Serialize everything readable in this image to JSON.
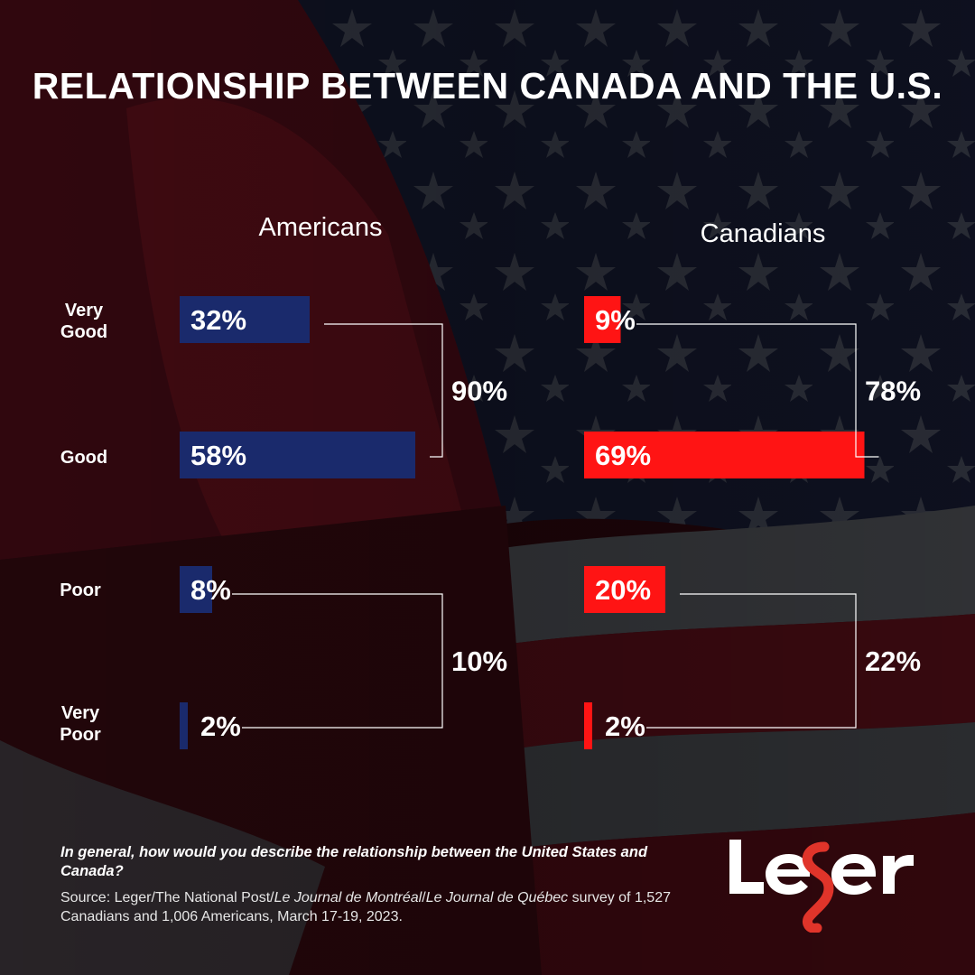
{
  "title": "RELATIONSHIP BETWEEN CANADA AND THE U.S.",
  "colors": {
    "americans": "#1a2a6c",
    "canadians": "#ff1414",
    "bracket": "#ffffff",
    "logo_accent": "#e0342a"
  },
  "chart_data": {
    "type": "bar",
    "orientation": "horizontal",
    "categories": [
      "Very Good",
      "Good",
      "Poor",
      "Very Poor"
    ],
    "series": [
      {
        "name": "Americans",
        "values": [
          32,
          58,
          8,
          2
        ],
        "labels": [
          "32%",
          "58%",
          "8%",
          "2%"
        ]
      },
      {
        "name": "Canadians",
        "values": [
          9,
          69,
          20,
          2
        ],
        "labels": [
          "9%",
          "69%",
          "20%",
          "2%"
        ]
      }
    ],
    "groups": [
      {
        "series": "Americans",
        "positive_total": "90%",
        "negative_total": "10%"
      },
      {
        "series": "Canadians",
        "positive_total": "78%",
        "negative_total": "22%"
      }
    ],
    "row_labels": [
      [
        "Very",
        "Good"
      ],
      [
        "Good"
      ],
      [
        "Poor"
      ],
      [
        "Very",
        "Poor"
      ]
    ]
  },
  "footer": {
    "question": "In general, how would you describe the relationship between the United States and Canada?",
    "source_prefix": "Source: Leger/The National Post/",
    "source_italic_1": "Le Journal de Montréal",
    "source_sep": "/",
    "source_italic_2": "Le Journal de Québec",
    "source_suffix": " survey of 1,527 Canadians and 1,006 Americans, March  17-19, 2023."
  },
  "logo": {
    "text": "Leger"
  }
}
